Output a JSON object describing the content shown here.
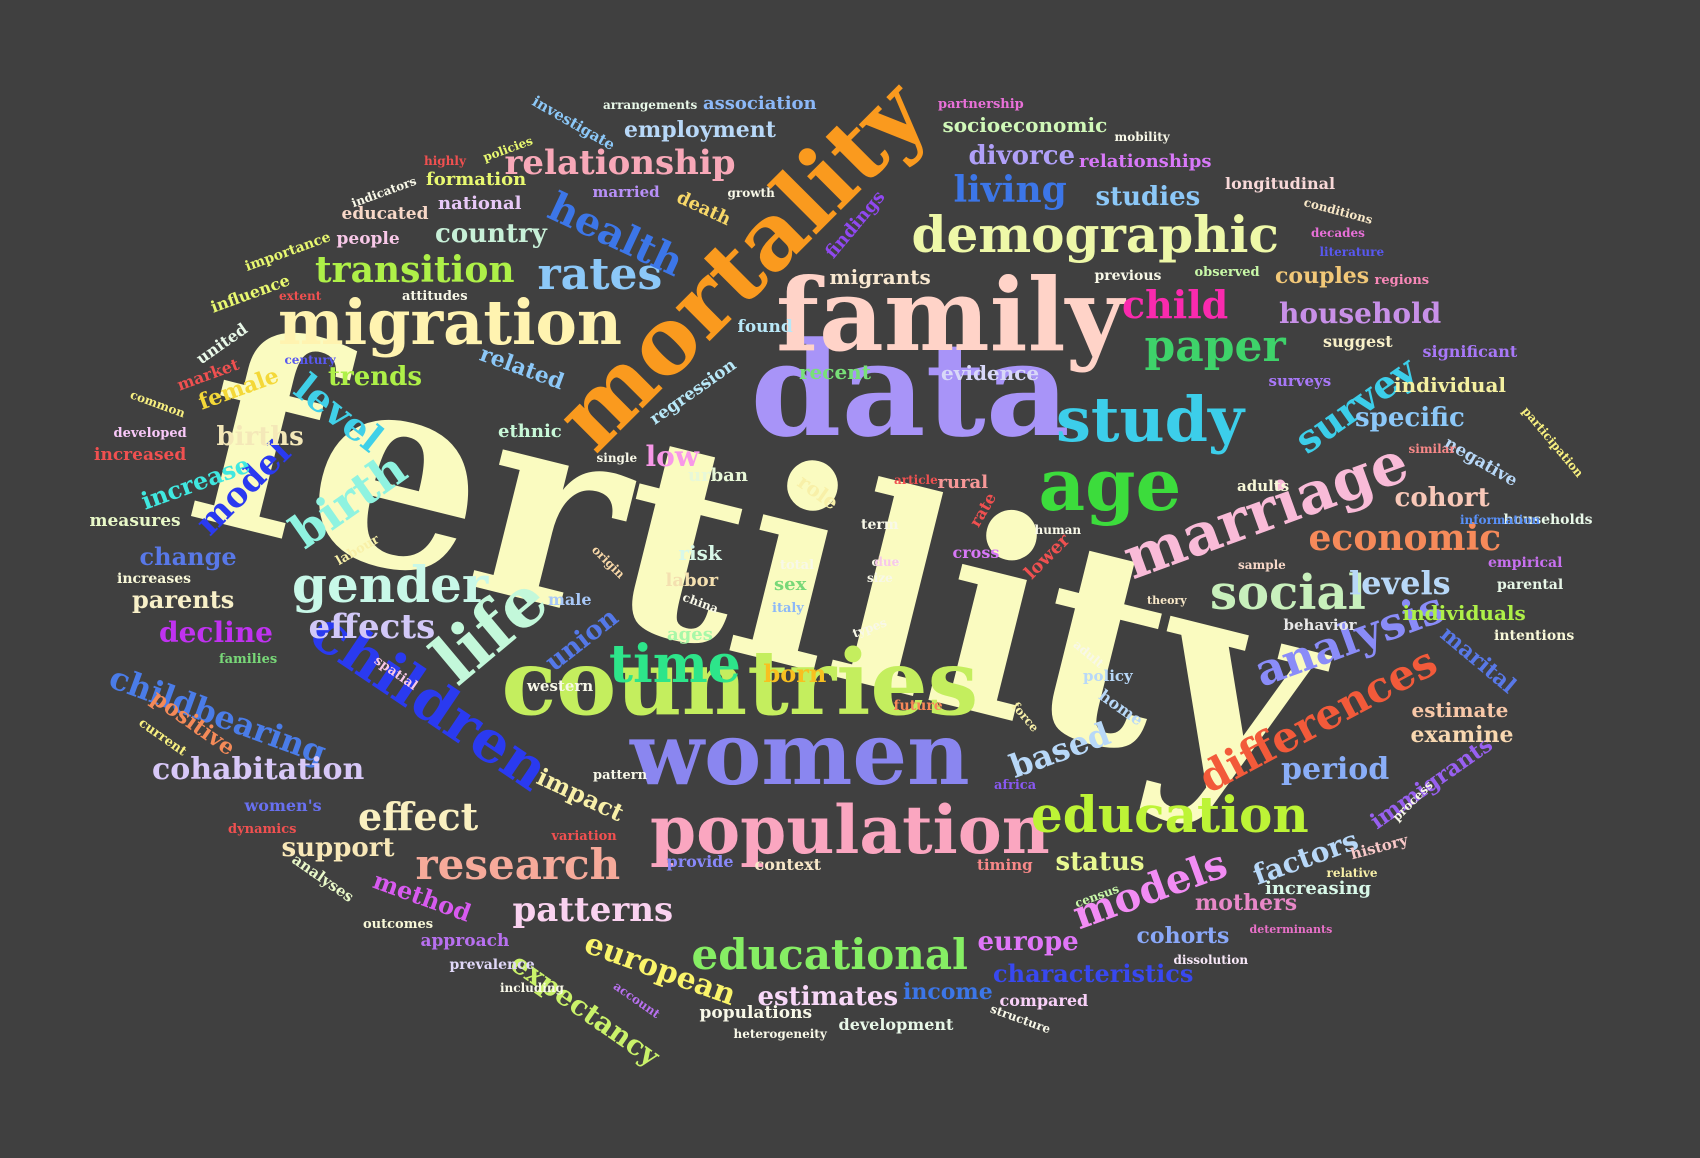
{
  "background": "#404040",
  "words": [
    {
      "text": "fertility",
      "color": "#FAFBC0"
    },
    {
      "text": "data",
      "color": "#A894F8"
    },
    {
      "text": "mortality",
      "color": "#FA9A1E"
    },
    {
      "text": "family",
      "color": "#FFD3C8"
    },
    {
      "text": "countries",
      "color": "#C4EE5E"
    },
    {
      "text": "women",
      "color": "#8A86F0"
    },
    {
      "text": "population",
      "color": "#FAA6C0"
    },
    {
      "text": "age",
      "color": "#3CDC3C"
    },
    {
      "text": "study",
      "color": "#3CCEEA"
    },
    {
      "text": "migration",
      "color": "#FFF3B0"
    },
    {
      "text": "demographic",
      "color": "#EEF8A8"
    },
    {
      "text": "marriage",
      "color": "#F9BBD8"
    },
    {
      "text": "children",
      "color": "#2A3AF0"
    },
    {
      "text": "life",
      "color": "#C3F8DA"
    },
    {
      "text": "education",
      "color": "#BDF436"
    },
    {
      "text": "time",
      "color": "#2DE58A"
    },
    {
      "text": "gender",
      "color": "#C8F8E8"
    },
    {
      "text": "social",
      "color": "#C8F0BC"
    },
    {
      "text": "differences",
      "color": "#F25A3A"
    },
    {
      "text": "analysis",
      "color": "#8A8CF8"
    },
    {
      "text": "rates",
      "color": "#8CC8F8"
    },
    {
      "text": "health",
      "color": "#3C76E8"
    },
    {
      "text": "paper",
      "color": "#3ED36A"
    },
    {
      "text": "birth",
      "color": "#8FF3E0"
    },
    {
      "text": "research",
      "color": "#F6AA9A"
    },
    {
      "text": "educational",
      "color": "#86EE64"
    },
    {
      "text": "models",
      "color": "#F28CF4"
    },
    {
      "text": "survey",
      "color": "#3CCEEA"
    },
    {
      "text": "transition",
      "color": "#AEF048"
    },
    {
      "text": "relationship",
      "color": "#F8A8B8"
    },
    {
      "text": "child",
      "color": "#FA2AAE"
    },
    {
      "text": "living",
      "color": "#3C76E8"
    },
    {
      "text": "economic",
      "color": "#F68A5A"
    },
    {
      "text": "level",
      "color": "#40D0E8"
    },
    {
      "text": "model",
      "color": "#2A3AF0"
    },
    {
      "text": "childbearing",
      "color": "#4A7CE8"
    },
    {
      "text": "cohabitation",
      "color": "#D8C8F8"
    },
    {
      "text": "effect",
      "color": "#FAF0C0"
    },
    {
      "text": "patterns",
      "color": "#FAD2F0"
    },
    {
      "text": "european",
      "color": "#FAF46A"
    },
    {
      "text": "effects",
      "color": "#D2C8F8"
    },
    {
      "text": "household",
      "color": "#C890E8"
    },
    {
      "text": "country",
      "color": "#C8F0D8"
    },
    {
      "text": "levels",
      "color": "#B8D8F8"
    },
    {
      "text": "cohort",
      "color": "#F8C8B8"
    },
    {
      "text": "period",
      "color": "#8AAEF8"
    },
    {
      "text": "expectancy",
      "color": "#CAF26A"
    },
    {
      "text": "based",
      "color": "#B8D8F8"
    },
    {
      "text": "specific",
      "color": "#8CC8F8"
    },
    {
      "text": "estimates",
      "color": "#F8D8F8"
    },
    {
      "text": "trends",
      "color": "#AEF048"
    },
    {
      "text": "divorce",
      "color": "#B0A0F8"
    },
    {
      "text": "studies",
      "color": "#8CC8F8"
    },
    {
      "text": "couples",
      "color": "#F2C878"
    },
    {
      "text": "factors",
      "color": "#B8D8F8"
    },
    {
      "text": "europe",
      "color": "#E076F8"
    },
    {
      "text": "status",
      "color": "#E8F890"
    },
    {
      "text": "characteristics",
      "color": "#3848F0"
    },
    {
      "text": "births",
      "color": "#F4E8B8"
    },
    {
      "text": "increase",
      "color": "#40E8E0"
    },
    {
      "text": "change",
      "color": "#5878E8"
    },
    {
      "text": "decline",
      "color": "#C032F0"
    },
    {
      "text": "support",
      "color": "#F8E8B8"
    },
    {
      "text": "parents",
      "color": "#F8F0C8"
    },
    {
      "text": "method",
      "color": "#D85AF0"
    },
    {
      "text": "low",
      "color": "#F898E8"
    },
    {
      "text": "born",
      "color": "#F8C020"
    },
    {
      "text": "union",
      "color": "#5478E8"
    },
    {
      "text": "impact",
      "color": "#F8F0A8"
    },
    {
      "text": "female",
      "color": "#F4D838"
    },
    {
      "text": "positive",
      "color": "#F48A58"
    },
    {
      "text": "marital",
      "color": "#5878E8"
    },
    {
      "text": "immigrants",
      "color": "#9860F0"
    },
    {
      "text": "mothers",
      "color": "#E888C8"
    },
    {
      "text": "cohorts",
      "color": "#8AA8F8"
    },
    {
      "text": "income",
      "color": "#3C76E8"
    },
    {
      "text": "related",
      "color": "#8CC8F8"
    },
    {
      "text": "individual",
      "color": "#F4F0A0"
    },
    {
      "text": "individuals",
      "color": "#AEF048"
    },
    {
      "text": "examine",
      "color": "#F8D8B0"
    },
    {
      "text": "estimate",
      "color": "#F8C8A8"
    },
    {
      "text": "increasing",
      "color": "#D8F8E8"
    },
    {
      "text": "risk",
      "color": "#D8F8E8"
    },
    {
      "text": "labor",
      "color": "#F4E0B0"
    },
    {
      "text": "migrants",
      "color": "#F8E8D0"
    },
    {
      "text": "recent",
      "color": "#78E078"
    },
    {
      "text": "evidence",
      "color": "#D8D8F8"
    },
    {
      "text": "employment",
      "color": "#B8D8F8"
    },
    {
      "text": "association",
      "color": "#8CB8F8"
    },
    {
      "text": "socioeconomic",
      "color": "#D0F8B8"
    },
    {
      "text": "relationships",
      "color": "#D878F8"
    },
    {
      "text": "formation",
      "color": "#E8F870"
    },
    {
      "text": "national",
      "color": "#E8C8F8"
    },
    {
      "text": "educated",
      "color": "#F8D8C8"
    },
    {
      "text": "people",
      "color": "#F8C8E8"
    },
    {
      "text": "married",
      "color": "#B890F8"
    },
    {
      "text": "death",
      "color": "#F8D868"
    },
    {
      "text": "findings",
      "color": "#9048F0"
    },
    {
      "text": "longitudinal",
      "color": "#F8D8D8"
    },
    {
      "text": "suggest",
      "color": "#F8F0C8"
    },
    {
      "text": "significant",
      "color": "#A878F8"
    },
    {
      "text": "surveys",
      "color": "#A878F8"
    },
    {
      "text": "negative",
      "color": "#B8D8F8"
    },
    {
      "text": "role",
      "color": "#F8F0A8"
    },
    {
      "text": "rural",
      "color": "#F89898"
    },
    {
      "text": "urban",
      "color": "#E8F8D8"
    },
    {
      "text": "ethnic",
      "color": "#C8F8D8"
    },
    {
      "text": "regression",
      "color": "#B8E8F8"
    },
    {
      "text": "found",
      "color": "#B8E8F8"
    },
    {
      "text": "ages",
      "color": "#A8F8A8"
    },
    {
      "text": "sex",
      "color": "#78D878"
    },
    {
      "text": "male",
      "color": "#A8C8F8"
    },
    {
      "text": "western",
      "color": "#F8F8E8"
    },
    {
      "text": "measures",
      "color": "#E8F8C8"
    },
    {
      "text": "increases",
      "color": "#F8F8D8"
    },
    {
      "text": "adults",
      "color": "#F8F8D8"
    },
    {
      "text": "behavior",
      "color": "#E8E8E8"
    },
    {
      "text": "empirical",
      "color": "#C870F0"
    },
    {
      "text": "parental",
      "color": "#E8F8E8"
    },
    {
      "text": "intentions",
      "color": "#F8F8D8"
    },
    {
      "text": "households",
      "color": "#E8F8E8"
    },
    {
      "text": "history",
      "color": "#F8C8C8"
    },
    {
      "text": "home",
      "color": "#B8D8F8"
    },
    {
      "text": "policy",
      "color": "#B8D8F8"
    },
    {
      "text": "lower",
      "color": "#F05050"
    },
    {
      "text": "cross",
      "color": "#D878F8"
    },
    {
      "text": "rate",
      "color": "#F05050"
    },
    {
      "text": "term",
      "color": "#F8F8E8"
    },
    {
      "text": "provide",
      "color": "#8888F8"
    },
    {
      "text": "context",
      "color": "#F8E8C8"
    },
    {
      "text": "timing",
      "color": "#F88888"
    },
    {
      "text": "approach",
      "color": "#B870F0"
    },
    {
      "text": "compared",
      "color": "#F8D0F8"
    },
    {
      "text": "development",
      "color": "#E8F8E8"
    },
    {
      "text": "populations",
      "color": "#F8F8E8"
    },
    {
      "text": "prevalence",
      "color": "#E0D8F8"
    },
    {
      "text": "outcomes",
      "color": "#F8F8D8"
    },
    {
      "text": "analyses",
      "color": "#E8F8C8"
    },
    {
      "text": "women's",
      "color": "#6870F0"
    },
    {
      "text": "dynamics",
      "color": "#F05050"
    },
    {
      "text": "variation",
      "color": "#F05050"
    },
    {
      "text": "current",
      "color": "#F8F080"
    },
    {
      "text": "families",
      "color": "#78D878"
    },
    {
      "text": "spatial",
      "color": "#F8C8E8"
    },
    {
      "text": "labour",
      "color": "#F8F0A8"
    },
    {
      "text": "origin",
      "color": "#F8D8A8"
    },
    {
      "text": "total",
      "color": "#F8F8E8"
    },
    {
      "text": "care",
      "color": "#F8F8E8"
    },
    {
      "text": "due",
      "color": "#F8C8E8"
    },
    {
      "text": "size",
      "color": "#F8F8E8"
    },
    {
      "text": "china",
      "color": "#F8F8E8"
    },
    {
      "text": "italy",
      "color": "#8CB8F8"
    },
    {
      "text": "types",
      "color": "#F8F8E8"
    },
    {
      "text": "adult",
      "color": "#F8F8E8"
    },
    {
      "text": "force",
      "color": "#F8F0A8"
    },
    {
      "text": "future",
      "color": "#F88858"
    },
    {
      "text": "africa",
      "color": "#8858F0"
    },
    {
      "text": "pattern",
      "color": "#F8F8E8"
    },
    {
      "text": "human",
      "color": "#F8F8E8"
    },
    {
      "text": "article",
      "color": "#F05050"
    },
    {
      "text": "theory",
      "color": "#F8E8C8"
    },
    {
      "text": "sample",
      "color": "#F8D8C8"
    },
    {
      "text": "single",
      "color": "#F8F8E8"
    },
    {
      "text": "census",
      "color": "#C8F8A8"
    },
    {
      "text": "relative",
      "color": "#F8F0A8"
    },
    {
      "text": "dissolution",
      "color": "#F8E8F8"
    },
    {
      "text": "determinants",
      "color": "#E870C8"
    },
    {
      "text": "structure",
      "color": "#F8F8E8"
    },
    {
      "text": "heterogeneity",
      "color": "#F8F8E8"
    },
    {
      "text": "including",
      "color": "#F8F8E8"
    },
    {
      "text": "account",
      "color": "#B870F0"
    },
    {
      "text": "process",
      "color": "#F8F8E8"
    },
    {
      "text": "participation",
      "color": "#F8F080"
    },
    {
      "text": "similar",
      "color": "#F88888"
    },
    {
      "text": "information",
      "color": "#5890F8"
    },
    {
      "text": "regions",
      "color": "#F888B8"
    },
    {
      "text": "literature",
      "color": "#5858F0"
    },
    {
      "text": "decades",
      "color": "#E870D8"
    },
    {
      "text": "conditions",
      "color": "#F8E8C8"
    },
    {
      "text": "observed",
      "color": "#C8F8A8"
    },
    {
      "text": "previous",
      "color": "#F8F8E8"
    },
    {
      "text": "mobility",
      "color": "#F8F8E8"
    },
    {
      "text": "partnership",
      "color": "#E870D8"
    },
    {
      "text": "growth",
      "color": "#F8F8E8"
    },
    {
      "text": "highly",
      "color": "#F05050"
    },
    {
      "text": "policies",
      "color": "#E8F870"
    },
    {
      "text": "investigate",
      "color": "#8CC8F8"
    },
    {
      "text": "arrangements",
      "color": "#E8F8E8"
    },
    {
      "text": "indicators",
      "color": "#F8F8E8"
    },
    {
      "text": "importance",
      "color": "#E8F870"
    },
    {
      "text": "influence",
      "color": "#E8F870"
    },
    {
      "text": "extent",
      "color": "#F05050"
    },
    {
      "text": "attitudes",
      "color": "#F8F8E8"
    },
    {
      "text": "united",
      "color": "#E8F8E8"
    },
    {
      "text": "century",
      "color": "#5858F0"
    },
    {
      "text": "market",
      "color": "#F05050"
    },
    {
      "text": "common",
      "color": "#F8F080"
    },
    {
      "text": "developed",
      "color": "#F8C8F8"
    },
    {
      "text": "increased",
      "color": "#F05050"
    }
  ]
}
